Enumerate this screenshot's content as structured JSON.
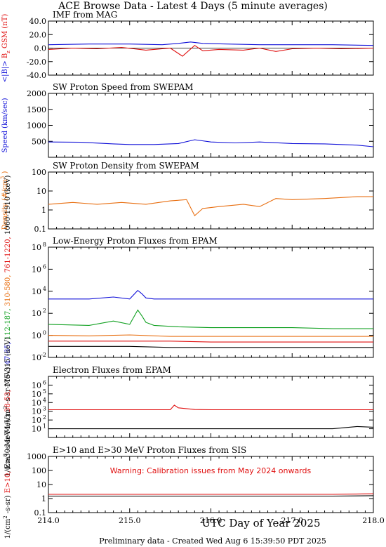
{
  "page": {
    "title": "ACE Browse Data - Latest 4 Days (5 minute averages)",
    "xlabel": "UTC Day of Year 2025",
    "footer": "Preliminary data - Created Wed Aug  6 15:39:50 PDT 2025"
  },
  "colors": {
    "blue": "#1010d8",
    "red": "#e01010",
    "green": "#10a020",
    "orange": "#e86e10",
    "black": "#000000"
  },
  "x_ticks": [
    "214.0",
    "215.0",
    "216.0",
    "217.0",
    "218.0"
  ],
  "chart_data": [
    {
      "id": "imf",
      "type": "line",
      "title": "IMF from MAG",
      "ylabel_parts": [
        {
          "text": "<|B|>",
          "color": "blue"
        },
        {
          "text": "B",
          "color": "red"
        },
        {
          "text": "z",
          "color": "red",
          "sub": true
        },
        {
          "text": "GSM (nT)",
          "color": "red"
        }
      ],
      "yscale": "linear",
      "ylim": [
        -40,
        40
      ],
      "yticks": [
        -40,
        -20,
        0,
        20,
        40
      ],
      "ytick_labels": [
        "-40.0",
        "-20.0",
        "0.0",
        "20.0",
        "40.0"
      ],
      "zero_line": true,
      "xlim": [
        214,
        218
      ],
      "series": [
        {
          "color": "blue",
          "x": [
            214.0,
            214.5,
            215.0,
            215.4,
            215.6,
            215.75,
            215.9,
            216.2,
            216.6,
            217.0,
            217.5,
            218.0
          ],
          "y": [
            5,
            6,
            6,
            5,
            7,
            9,
            7,
            6,
            5,
            5,
            5,
            4
          ]
        },
        {
          "color": "red",
          "x": [
            214.0,
            214.3,
            214.6,
            214.9,
            215.2,
            215.5,
            215.65,
            215.8,
            215.9,
            216.1,
            216.4,
            216.6,
            216.8,
            217.0,
            217.3,
            217.6,
            218.0
          ],
          "y": [
            -2,
            0,
            -1,
            1,
            -3,
            0,
            -12,
            4,
            -4,
            -2,
            -3,
            0,
            -5,
            -1,
            0,
            -1,
            0
          ]
        }
      ]
    },
    {
      "id": "speed",
      "type": "line",
      "title": "SW Proton Speed from SWEPAM",
      "ylabel_parts": [
        {
          "text": "Speed (km/sec)",
          "color": "blue"
        }
      ],
      "yscale": "linear",
      "ylim": [
        0,
        2000
      ],
      "yticks": [
        500,
        1000,
        1500,
        2000
      ],
      "ytick_labels": [
        "500",
        "1000",
        "1500",
        "2000"
      ],
      "xlim": [
        214,
        218
      ],
      "series": [
        {
          "color": "blue",
          "x": [
            214.0,
            214.4,
            214.8,
            215.0,
            215.3,
            215.6,
            215.8,
            216.0,
            216.3,
            216.6,
            217.0,
            217.4,
            217.8,
            218.0
          ],
          "y": [
            480,
            470,
            420,
            400,
            400,
            430,
            550,
            480,
            450,
            480,
            430,
            420,
            380,
            330
          ]
        }
      ]
    },
    {
      "id": "density",
      "type": "line",
      "title": "SW Proton Density from SWEPAM",
      "ylabel_parts": [
        {
          "text": "Density (#/cm",
          "color": "orange"
        },
        {
          "text": "3",
          "color": "orange",
          "sup": true
        },
        {
          "text": ")",
          "color": "orange"
        }
      ],
      "yscale": "log",
      "ylim": [
        0.1,
        100
      ],
      "yticks": [
        0.1,
        1,
        10,
        100
      ],
      "ytick_labels": [
        "0.1",
        "1",
        "10",
        "100"
      ],
      "xlim": [
        214,
        218
      ],
      "series": [
        {
          "color": "orange",
          "x": [
            214.0,
            214.3,
            214.6,
            214.9,
            215.2,
            215.5,
            215.7,
            215.8,
            215.9,
            216.1,
            216.4,
            216.6,
            216.8,
            217.0,
            217.4,
            217.8,
            218.0
          ],
          "y": [
            2,
            2.5,
            2,
            2.5,
            2,
            3,
            3.5,
            0.5,
            1.2,
            1.5,
            2,
            1.5,
            4,
            3.5,
            4,
            5,
            5
          ]
        }
      ]
    },
    {
      "id": "epam-proton",
      "type": "line",
      "title": "Low-Energy Proton Fluxes from EPAM",
      "ylabel_parts": [
        {
          "text": "1/(cm",
          "color": "black"
        },
        {
          "text": "2",
          "color": "black",
          "sup": true
        },
        {
          "text": "-s-sr-MeV)",
          "color": "black"
        },
        {
          "text": "47-65,",
          "color": "blue"
        },
        {
          "text": "112-187,",
          "color": "green"
        },
        {
          "text": "310-580,",
          "color": "orange"
        },
        {
          "text": "761-1220,",
          "color": "red"
        },
        {
          "text": "1060-1910 (keV)",
          "color": "black"
        }
      ],
      "yscale": "log",
      "ylim": [
        0.01,
        100000000
      ],
      "yticks": [
        0.01,
        1,
        100,
        10000,
        1000000,
        100000000
      ],
      "ytick_labels": [
        "10",
        "10",
        "10",
        "10",
        "10",
        "10"
      ],
      "ytick_exponents": [
        "-2",
        "0",
        "2",
        "4",
        "6",
        "8"
      ],
      "xlim": [
        214,
        218
      ],
      "series": [
        {
          "color": "blue",
          "x": [
            214.0,
            214.5,
            214.8,
            215.0,
            215.1,
            215.15,
            215.2,
            215.3,
            215.6,
            216.0,
            216.5,
            217.0,
            217.5,
            218.0
          ],
          "y": [
            2000,
            2000,
            3000,
            2000,
            12000,
            6000,
            2500,
            2000,
            2000,
            2000,
            2000,
            2000,
            2000,
            2000
          ]
        },
        {
          "color": "green",
          "x": [
            214.0,
            214.5,
            214.8,
            215.0,
            215.1,
            215.15,
            215.2,
            215.3,
            215.6,
            216.0,
            216.5,
            217.0,
            217.5,
            218.0
          ],
          "y": [
            10,
            8,
            20,
            10,
            200,
            60,
            15,
            8,
            6,
            5,
            5,
            5,
            4,
            4
          ]
        },
        {
          "color": "orange",
          "x": [
            214.0,
            214.5,
            215.0,
            215.5,
            216.0,
            216.5,
            217.0,
            217.5,
            218.0
          ],
          "y": [
            1,
            0.9,
            1.1,
            0.8,
            0.8,
            0.8,
            0.8,
            0.8,
            0.8
          ]
        },
        {
          "color": "red",
          "x": [
            214.0,
            214.5,
            215.0,
            215.5,
            216.0,
            216.5,
            217.0,
            217.5,
            218.0
          ],
          "y": [
            0.3,
            0.3,
            0.3,
            0.3,
            0.25,
            0.25,
            0.25,
            0.25,
            0.25
          ]
        },
        {
          "color": "black",
          "x": [
            214.0,
            214.5,
            215.0,
            215.5,
            216.0,
            216.5,
            217.0,
            217.5,
            218.0
          ],
          "y": [
            0.1,
            0.1,
            0.1,
            0.08,
            0.08,
            0.08,
            0.08,
            0.08,
            0.08
          ]
        }
      ]
    },
    {
      "id": "epam-electron",
      "type": "line",
      "title": "Electron Fluxes from EPAM",
      "ylabel_parts": [
        {
          "text": "1/(cm",
          "color": "black"
        },
        {
          "text": "2",
          "color": "black",
          "sup": true
        },
        {
          "text": "-s-sr-MeV)",
          "color": "black"
        },
        {
          "text": "38-53,",
          "color": "red"
        },
        {
          "text": "175-315 (keV)",
          "color": "black"
        }
      ],
      "yscale": "log",
      "ylim": [
        1,
        10000000
      ],
      "yticks": [
        10,
        100,
        1000,
        10000,
        100000,
        1000000
      ],
      "ytick_labels": [
        "10",
        "10",
        "10",
        "10",
        "10",
        "10"
      ],
      "ytick_exponents": [
        "1",
        "2",
        "3",
        "4",
        "5",
        "6"
      ],
      "xlim": [
        214,
        218
      ],
      "series": [
        {
          "color": "red",
          "x": [
            214.0,
            214.5,
            215.0,
            215.5,
            215.55,
            215.6,
            215.8,
            216.0,
            216.5,
            217.0,
            217.5,
            218.0
          ],
          "y": [
            1500,
            1500,
            1500,
            1500,
            5000,
            2500,
            1600,
            1500,
            1500,
            1500,
            1500,
            1500
          ]
        },
        {
          "color": "black",
          "x": [
            214.0,
            214.5,
            215.0,
            215.5,
            216.0,
            216.5,
            217.0,
            217.5,
            217.8,
            218.0
          ],
          "y": [
            10,
            10,
            10,
            10,
            10,
            10,
            10,
            10,
            18,
            15
          ]
        }
      ]
    },
    {
      "id": "sis",
      "type": "line",
      "title": "E>10 and E>30 MeV Proton Fluxes from SIS",
      "annotation": "Warning: Calibration issues from May 2024 onwards",
      "ylabel_parts": [
        {
          "text": "1/(cm",
          "color": "black"
        },
        {
          "text": "2",
          "color": "black",
          "sup": true
        },
        {
          "text": "-s-sr)",
          "color": "black"
        },
        {
          "text": "E>10,",
          "color": "red"
        },
        {
          "text": "E>30 MeV",
          "color": "black"
        }
      ],
      "yscale": "log",
      "ylim": [
        0.1,
        1000
      ],
      "yticks": [
        0.1,
        1,
        10,
        100,
        1000
      ],
      "ytick_labels": [
        "0.1",
        "1",
        "10",
        "100",
        "1000"
      ],
      "xlim": [
        214,
        218
      ],
      "series": [
        {
          "color": "red",
          "x": [
            214.0,
            214.5,
            215.0,
            215.5,
            216.0,
            216.5,
            217.0,
            217.5,
            218.0
          ],
          "y": [
            2,
            2,
            2,
            2,
            2,
            2,
            2,
            2,
            2.2
          ]
        },
        {
          "color": "black",
          "x": [
            214.0,
            214.5,
            215.0,
            215.5,
            216.0,
            216.5,
            217.0,
            217.5,
            218.0
          ],
          "y": [
            1.5,
            1.5,
            1.5,
            1.5,
            1.5,
            1.5,
            1.5,
            1.5,
            1.6
          ]
        }
      ]
    }
  ]
}
